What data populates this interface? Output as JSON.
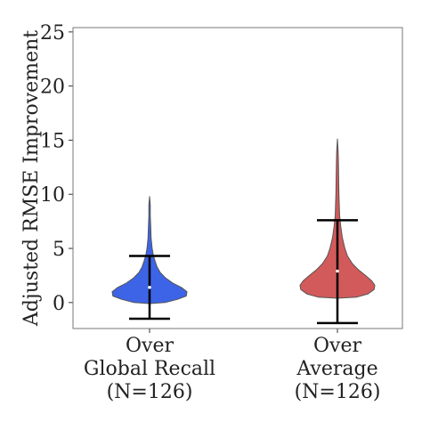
{
  "chart_data": {
    "type": "violin",
    "title": "",
    "ylabel": "Adjusted RMSE Improvement",
    "xlabel": "",
    "ylim": [
      -2.4,
      25.4
    ],
    "yticks": [
      0,
      5,
      10,
      15,
      20,
      25
    ],
    "grid": false,
    "legend": "none",
    "categories": [
      {
        "lines": [
          "Over",
          "Global Recall",
          "(N=126)"
        ]
      },
      {
        "lines": [
          "Over",
          "Average",
          "(N=126)"
        ]
      }
    ],
    "series": [
      {
        "color": "#3d64e6",
        "min": -1.5,
        "max": 9.8,
        "whisker_upper": 4.3,
        "mean": 1.4,
        "density": [
          [
            -0.1,
            0.0
          ],
          [
            0.0,
            0.42
          ],
          [
            0.3,
            0.75
          ],
          [
            0.6,
            0.98
          ],
          [
            1.0,
            1.0
          ],
          [
            1.4,
            0.85
          ],
          [
            1.8,
            0.62
          ],
          [
            2.3,
            0.42
          ],
          [
            2.8,
            0.28
          ],
          [
            3.3,
            0.2
          ],
          [
            3.8,
            0.15
          ],
          [
            4.4,
            0.1
          ],
          [
            5.0,
            0.07
          ],
          [
            6.0,
            0.04
          ],
          [
            7.0,
            0.03
          ],
          [
            8.0,
            0.02
          ],
          [
            9.0,
            0.02
          ],
          [
            9.8,
            0.0
          ]
        ]
      },
      {
        "color": "#d35a5a",
        "min": -1.9,
        "max": 15.1,
        "whisker_upper": 7.6,
        "mean": 2.9,
        "density": [
          [
            0.4,
            0.0
          ],
          [
            0.5,
            0.52
          ],
          [
            0.8,
            0.82
          ],
          [
            1.2,
            0.98
          ],
          [
            1.6,
            1.0
          ],
          [
            2.0,
            0.92
          ],
          [
            2.5,
            0.75
          ],
          [
            3.0,
            0.57
          ],
          [
            3.6,
            0.4
          ],
          [
            4.3,
            0.27
          ],
          [
            5.0,
            0.2
          ],
          [
            6.0,
            0.13
          ],
          [
            7.0,
            0.09
          ],
          [
            8.0,
            0.06
          ],
          [
            9.0,
            0.05
          ],
          [
            10.0,
            0.04
          ],
          [
            11.0,
            0.035
          ],
          [
            12.0,
            0.03
          ],
          [
            13.0,
            0.025
          ],
          [
            14.0,
            0.02
          ],
          [
            15.1,
            0.0
          ]
        ]
      }
    ]
  }
}
